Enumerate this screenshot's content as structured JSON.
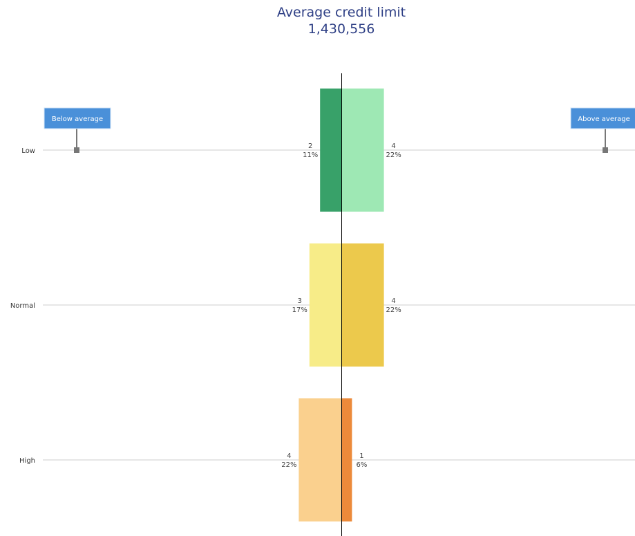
{
  "chart_header": {
    "title": "Average credit limit",
    "subtitle": "1,430,556"
  },
  "chart_data": {
    "type": "bar",
    "orientation": "diverging-horizontal",
    "title": "Average credit limit",
    "subtitle": "1,430,556",
    "categories": [
      "Low",
      "Normal",
      "High"
    ],
    "series": [
      {
        "name": "Below average",
        "values": [
          2,
          3,
          4
        ],
        "percent_labels": [
          "11%",
          "17%",
          "22%"
        ]
      },
      {
        "name": "Above average",
        "values": [
          4,
          4,
          1
        ],
        "percent_labels": [
          "22%",
          "22%",
          "6%"
        ]
      }
    ],
    "colors": {
      "below": [
        "#38a169",
        "#f7ec88",
        "#fad08e"
      ],
      "above": [
        "#9ee8b4",
        "#ecc94c",
        "#ec8a3a"
      ],
      "marker_fill": "#4a90d9",
      "marker_stem": "#777777",
      "gridline": "#cccccc",
      "center_line": "#000000"
    },
    "grid": true,
    "markers": [
      "Below average",
      "Above average"
    ]
  }
}
